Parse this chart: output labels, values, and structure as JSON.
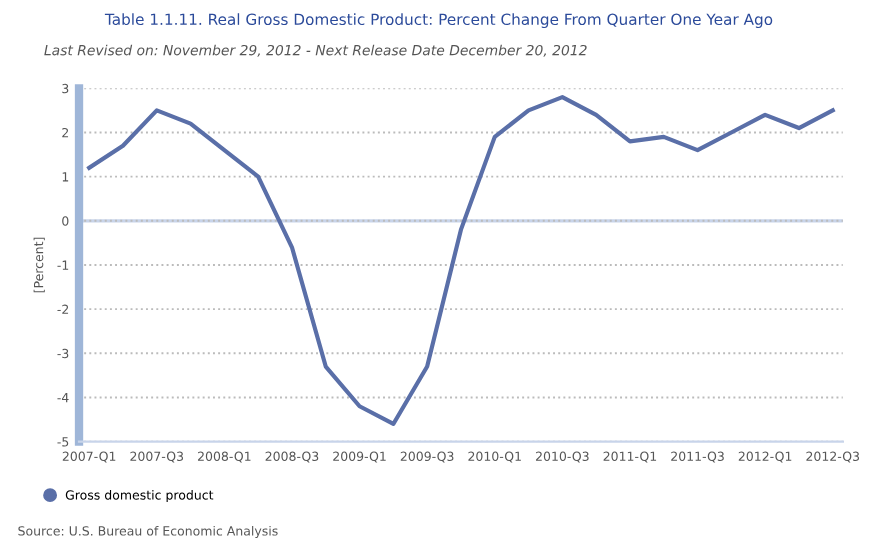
{
  "chart_data": {
    "type": "line",
    "title": "Table 1.1.11. Real Gross Domestic Product: Percent Change From Quarter One Year Ago",
    "subtitle": "Last Revised on: November 29, 2012 - Next Release Date December 20, 2012",
    "ylabel": "[Percent]",
    "categories": [
      "2007-Q1",
      null,
      "2007-Q3",
      null,
      "2008-Q1",
      null,
      "2008-Q3",
      null,
      "2009-Q1",
      null,
      "2009-Q3",
      null,
      "2010-Q1",
      null,
      "2010-Q3",
      null,
      "2011-Q1",
      null,
      "2011-Q3",
      null,
      "2012-Q1",
      null,
      "2012-Q3"
    ],
    "series": [
      {
        "name": "Gross domestic product",
        "color": "#5a6fa8",
        "values": [
          1.2,
          1.7,
          2.5,
          2.2,
          1.6,
          1.0,
          -0.6,
          -3.3,
          -4.2,
          -4.6,
          -3.3,
          -0.2,
          1.9,
          2.5,
          2.8,
          2.4,
          1.8,
          1.9,
          1.6,
          2.0,
          2.4,
          2.1,
          2.5
        ]
      }
    ],
    "ylim": [
      -5,
      3
    ],
    "yticks": [
      -5,
      -4,
      -3,
      -2,
      -1,
      0,
      1,
      2,
      3
    ],
    "grid": "y",
    "legend": "bottom left",
    "marker": "none",
    "line_style": "solid",
    "ref_lines": [
      {
        "axis": "y",
        "value": 0,
        "color": "#c8d4ea"
      }
    ],
    "annotations": [
      "Source: U.S. Bureau of Economic Analysis"
    ]
  }
}
